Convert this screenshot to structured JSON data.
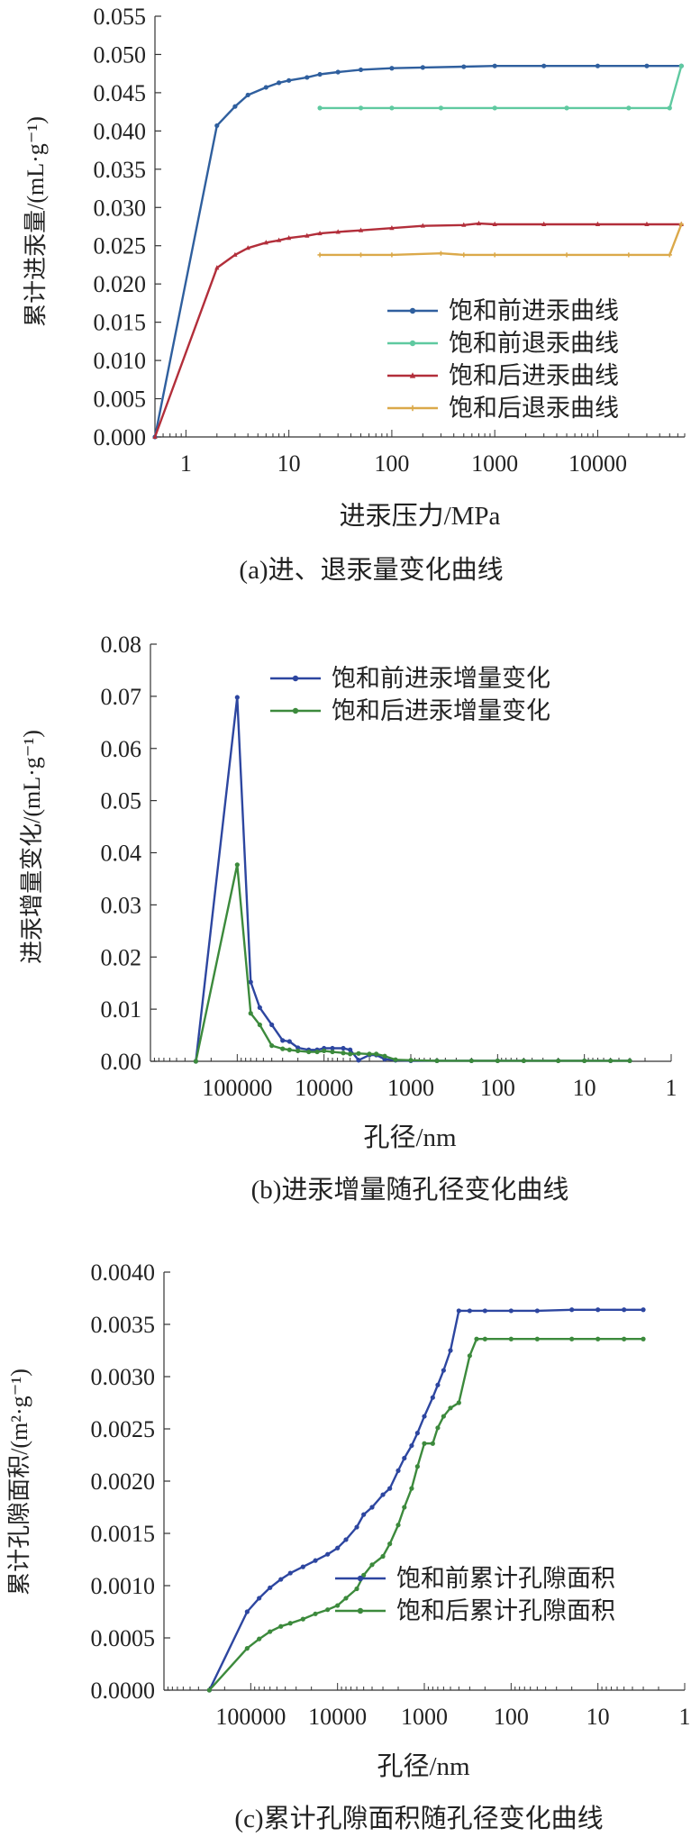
{
  "chart_data": [
    {
      "type": "line",
      "caption": "(a)进、退汞量变化曲线",
      "xlabel": "进汞压力/MPa",
      "ylabel": "累计进汞量/(mL·g⁻¹)",
      "xscale": "log",
      "xlim": [
        0.5,
        70000
      ],
      "ylim": [
        0,
        0.055
      ],
      "xticks": [
        1,
        10,
        100,
        1000,
        10000
      ],
      "xtick_labels": [
        "1",
        "10",
        "100",
        "1000",
        "10000"
      ],
      "yticks": [
        0,
        0.005,
        0.01,
        0.015,
        0.02,
        0.025,
        0.03,
        0.035,
        0.04,
        0.045,
        0.05,
        0.055
      ],
      "ytick_labels": [
        "0.000",
        "0.005",
        "0.010",
        "0.015",
        "0.020",
        "0.025",
        "0.030",
        "0.035",
        "0.040",
        "0.045",
        "0.050",
        "0.055"
      ],
      "legend_position": "lower-right",
      "series": [
        {
          "name": "饱和前进汞曲线",
          "color": "#2f5f9e",
          "marker": "circle",
          "points": [
            [
              0.5,
              0
            ],
            [
              2,
              0.0407
            ],
            [
              3,
              0.0432
            ],
            [
              4,
              0.0447
            ],
            [
              6,
              0.0457
            ],
            [
              8,
              0.0463
            ],
            [
              10,
              0.0466
            ],
            [
              15,
              0.047
            ],
            [
              20,
              0.0474
            ],
            [
              30,
              0.0477
            ],
            [
              50,
              0.048
            ],
            [
              100,
              0.0482
            ],
            [
              200,
              0.0483
            ],
            [
              500,
              0.0484
            ],
            [
              1000,
              0.0485
            ],
            [
              3000,
              0.0485
            ],
            [
              10000,
              0.0485
            ],
            [
              30000,
              0.0485
            ],
            [
              65000,
              0.0485
            ]
          ]
        },
        {
          "name": "饱和前退汞曲线",
          "color": "#5fc9a0",
          "marker": "circle",
          "points": [
            [
              65000,
              0.0485
            ],
            [
              50000,
              0.043
            ],
            [
              20000,
              0.043
            ],
            [
              5000,
              0.043
            ],
            [
              1000,
              0.043
            ],
            [
              300,
              0.043
            ],
            [
              100,
              0.043
            ],
            [
              50,
              0.043
            ],
            [
              20,
              0.043
            ]
          ]
        },
        {
          "name": "饱和后进汞曲线",
          "color": "#b22e3a",
          "marker": "triangle",
          "points": [
            [
              0.5,
              0
            ],
            [
              2,
              0.0221
            ],
            [
              3,
              0.0238
            ],
            [
              4,
              0.0247
            ],
            [
              6,
              0.0254
            ],
            [
              8,
              0.0257
            ],
            [
              10,
              0.026
            ],
            [
              15,
              0.0263
            ],
            [
              20,
              0.0266
            ],
            [
              30,
              0.0268
            ],
            [
              50,
              0.027
            ],
            [
              100,
              0.0273
            ],
            [
              200,
              0.0276
            ],
            [
              500,
              0.0277
            ],
            [
              700,
              0.0279
            ],
            [
              1000,
              0.0278
            ],
            [
              3000,
              0.0278
            ],
            [
              10000,
              0.0278
            ],
            [
              30000,
              0.0278
            ],
            [
              65000,
              0.0278
            ]
          ]
        },
        {
          "name": "饱和后退汞曲线",
          "color": "#dba94a",
          "marker": "cross",
          "points": [
            [
              65000,
              0.0278
            ],
            [
              50000,
              0.0238
            ],
            [
              20000,
              0.0238
            ],
            [
              5000,
              0.0238
            ],
            [
              1000,
              0.0238
            ],
            [
              500,
              0.0238
            ],
            [
              300,
              0.024
            ],
            [
              100,
              0.0238
            ],
            [
              50,
              0.0238
            ],
            [
              20,
              0.0238
            ]
          ]
        }
      ]
    },
    {
      "type": "line",
      "caption": "(b)进汞增量随孔径变化曲线",
      "xlabel": "孔径/nm",
      "ylabel": "进汞增量变化/(mL·g⁻¹)",
      "xscale": "log-reversed",
      "xlim": [
        1,
        1000000
      ],
      "ylim": [
        0,
        0.08
      ],
      "xticks": [
        100000,
        10000,
        1000,
        100,
        10,
        1
      ],
      "xtick_labels": [
        "100000",
        "10000",
        "1000",
        "100",
        "10",
        "1"
      ],
      "yticks": [
        0,
        0.01,
        0.02,
        0.03,
        0.04,
        0.05,
        0.06,
        0.07,
        0.08
      ],
      "ytick_labels": [
        "0.00",
        "0.01",
        "0.02",
        "0.03",
        "0.04",
        "0.05",
        "0.06",
        "0.07",
        "0.08"
      ],
      "legend_position": "top-right",
      "series": [
        {
          "name": "饱和前进汞增量变化",
          "color": "#2d46a0",
          "marker": "circle",
          "points": [
            [
              300000,
              0
            ],
            [
              100000,
              0.0698
            ],
            [
              70000,
              0.0152
            ],
            [
              55000,
              0.0103
            ],
            [
              40000,
              0.007
            ],
            [
              30000,
              0.004
            ],
            [
              25000,
              0.0038
            ],
            [
              20000,
              0.0026
            ],
            [
              15000,
              0.0022
            ],
            [
              12000,
              0.0022
            ],
            [
              10000,
              0.0025
            ],
            [
              8000,
              0.0025
            ],
            [
              6000,
              0.0025
            ],
            [
              5000,
              0.0022
            ],
            [
              4000,
              0.0002
            ],
            [
              3000,
              0.0012
            ],
            [
              2500,
              0.0012
            ],
            [
              2000,
              0.0004
            ],
            [
              1500,
              0.0002
            ],
            [
              1000,
              0.0001
            ],
            [
              500,
              0.0001
            ],
            [
              200,
              0.0001
            ],
            [
              100,
              0.0001
            ],
            [
              50,
              0.0001
            ],
            [
              20,
              0.0001
            ],
            [
              10,
              0.0001
            ],
            [
              5,
              0.0001
            ],
            [
              3,
              0.0001
            ]
          ]
        },
        {
          "name": "饱和后进汞增量变化",
          "color": "#3c8a3c",
          "marker": "circle",
          "points": [
            [
              300000,
              0
            ],
            [
              100000,
              0.0377
            ],
            [
              70000,
              0.0092
            ],
            [
              55000,
              0.007
            ],
            [
              40000,
              0.003
            ],
            [
              30000,
              0.0024
            ],
            [
              25000,
              0.0022
            ],
            [
              20000,
              0.002
            ],
            [
              15000,
              0.0018
            ],
            [
              12000,
              0.0018
            ],
            [
              10000,
              0.002
            ],
            [
              8000,
              0.0018
            ],
            [
              6000,
              0.0016
            ],
            [
              5000,
              0.0014
            ],
            [
              4000,
              0.0015
            ],
            [
              3000,
              0.0014
            ],
            [
              2500,
              0.0014
            ],
            [
              2000,
              0.001
            ],
            [
              1500,
              0.0003
            ],
            [
              1000,
              0.0002
            ],
            [
              500,
              0.0001
            ],
            [
              200,
              0.0001
            ],
            [
              100,
              0.0001
            ],
            [
              50,
              0.0001
            ],
            [
              20,
              0.0001
            ],
            [
              10,
              0.0001
            ],
            [
              5,
              0.0001
            ],
            [
              3,
              0.0001
            ]
          ]
        }
      ]
    },
    {
      "type": "line",
      "caption": "(c)累计孔隙面积随孔径变化曲线",
      "xlabel": "孔径/nm",
      "ylabel": "累计孔隙面积/(m²·g⁻¹)",
      "xscale": "log-reversed",
      "xlim": [
        1,
        1000000
      ],
      "ylim": [
        0,
        0.004
      ],
      "xticks": [
        100000,
        10000,
        1000,
        100,
        10,
        1
      ],
      "xtick_labels": [
        "100000",
        "10000",
        "1000",
        "100",
        "10",
        "1"
      ],
      "yticks": [
        0,
        0.0005,
        0.001,
        0.0015,
        0.002,
        0.0025,
        0.003,
        0.0035,
        0.004
      ],
      "ytick_labels": [
        "0.0000",
        "0.0005",
        "0.0010",
        "0.0015",
        "0.0020",
        "0.0025",
        "0.0030",
        "0.0035",
        "0.0040"
      ],
      "legend_position": "lower-right",
      "series": [
        {
          "name": "饱和前累计孔隙面积",
          "color": "#2d46a0",
          "marker": "circle",
          "points": [
            [
              300000,
              0
            ],
            [
              110000,
              0.00075
            ],
            [
              80000,
              0.00088
            ],
            [
              60000,
              0.00098
            ],
            [
              45000,
              0.00106
            ],
            [
              35000,
              0.00112
            ],
            [
              25000,
              0.00118
            ],
            [
              18000,
              0.00124
            ],
            [
              13000,
              0.0013
            ],
            [
              10000,
              0.00136
            ],
            [
              8000,
              0.00144
            ],
            [
              6000,
              0.00156
            ],
            [
              5000,
              0.00168
            ],
            [
              4000,
              0.00175
            ],
            [
              3000,
              0.00187
            ],
            [
              2500,
              0.00193
            ],
            [
              2000,
              0.0021
            ],
            [
              1700,
              0.00222
            ],
            [
              1400,
              0.00234
            ],
            [
              1200,
              0.00246
            ],
            [
              1000,
              0.00262
            ],
            [
              800,
              0.0028
            ],
            [
              700,
              0.00292
            ],
            [
              600,
              0.00306
            ],
            [
              500,
              0.00325
            ],
            [
              400,
              0.00363
            ],
            [
              300,
              0.00363
            ],
            [
              200,
              0.00363
            ],
            [
              100,
              0.00363
            ],
            [
              50,
              0.00363
            ],
            [
              20,
              0.00364
            ],
            [
              10,
              0.00364
            ],
            [
              5,
              0.00364
            ],
            [
              3,
              0.00364
            ]
          ]
        },
        {
          "name": "饱和后累计孔隙面积",
          "color": "#3c8a3c",
          "marker": "circle",
          "points": [
            [
              300000,
              0
            ],
            [
              110000,
              0.0004
            ],
            [
              80000,
              0.00049
            ],
            [
              60000,
              0.00056
            ],
            [
              45000,
              0.00061
            ],
            [
              35000,
              0.00064
            ],
            [
              25000,
              0.00068
            ],
            [
              18000,
              0.00073
            ],
            [
              13000,
              0.00077
            ],
            [
              10000,
              0.00081
            ],
            [
              8000,
              0.00088
            ],
            [
              6000,
              0.00097
            ],
            [
              5000,
              0.0011
            ],
            [
              4000,
              0.0012
            ],
            [
              3000,
              0.00128
            ],
            [
              2500,
              0.0014
            ],
            [
              2000,
              0.00158
            ],
            [
              1700,
              0.00175
            ],
            [
              1400,
              0.00193
            ],
            [
              1200,
              0.00214
            ],
            [
              1000,
              0.00236
            ],
            [
              800,
              0.00236
            ],
            [
              700,
              0.00251
            ],
            [
              600,
              0.00262
            ],
            [
              500,
              0.0027
            ],
            [
              400,
              0.00275
            ],
            [
              300,
              0.0032
            ],
            [
              250,
              0.00336
            ],
            [
              200,
              0.00336
            ],
            [
              100,
              0.00336
            ],
            [
              50,
              0.00336
            ],
            [
              20,
              0.00336
            ],
            [
              10,
              0.00336
            ],
            [
              5,
              0.00336
            ],
            [
              3,
              0.00336
            ]
          ]
        }
      ]
    }
  ]
}
